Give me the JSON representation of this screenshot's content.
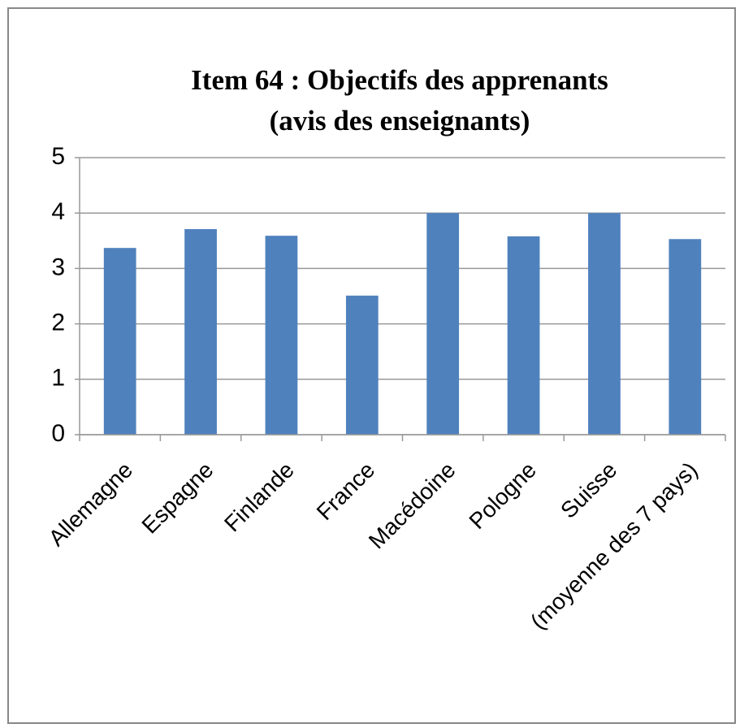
{
  "chart_data": {
    "type": "bar",
    "title": [
      "Item 64 : Objectifs des apprenants",
      "(avis des enseignants)"
    ],
    "categories": [
      "Allemagne",
      "Espagne",
      "Finlande",
      "France",
      "Macédoine",
      "Pologne",
      "Suisse",
      "(moyenne des 7 pays)"
    ],
    "values": [
      3.37,
      3.71,
      3.59,
      2.51,
      4.0,
      3.58,
      4.0,
      3.53
    ],
    "color": "#4f81bd",
    "ylim": [
      0,
      5
    ],
    "yticks": [
      0,
      1,
      2,
      3,
      4,
      5
    ],
    "grid": true
  }
}
